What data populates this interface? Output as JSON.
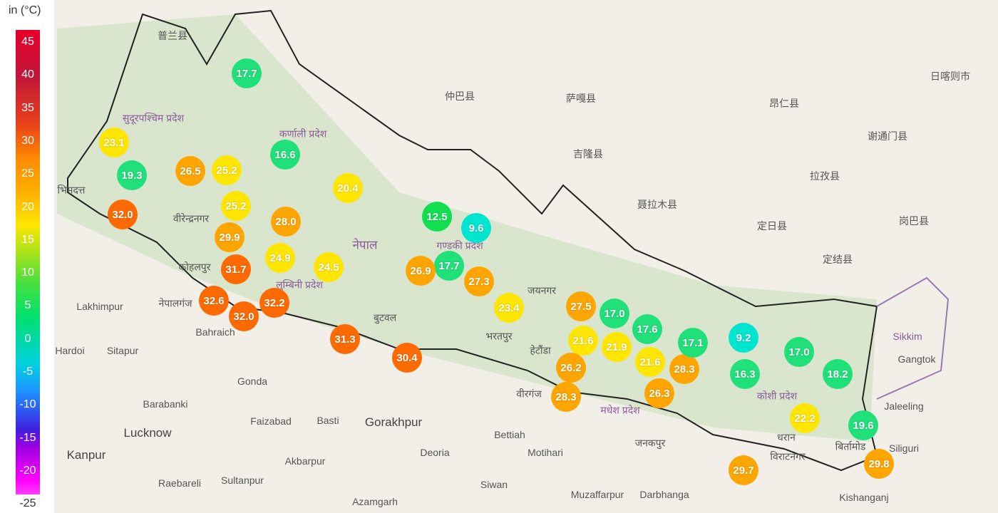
{
  "legend": {
    "unit": "in (°C)",
    "ticks": [
      "45",
      "40",
      "35",
      "30",
      "25",
      "20",
      "15",
      "10",
      "5",
      "0",
      "-5",
      "-10",
      "-15",
      "-20",
      "-25"
    ]
  },
  "stations": [
    {
      "value": "17.7"
    },
    {
      "value": "23.1"
    },
    {
      "value": "19.3"
    },
    {
      "value": "26.5"
    },
    {
      "value": "25.2"
    },
    {
      "value": "16.6"
    },
    {
      "value": "20.4"
    },
    {
      "value": "25.2"
    },
    {
      "value": "28.0"
    },
    {
      "value": "29.9"
    },
    {
      "value": "32.0"
    },
    {
      "value": "31.7"
    },
    {
      "value": "24.9"
    },
    {
      "value": "24.5"
    },
    {
      "value": "32.6"
    },
    {
      "value": "32.2"
    },
    {
      "value": "32.0"
    },
    {
      "value": "31.3"
    },
    {
      "value": "30.4"
    },
    {
      "value": "12.5"
    },
    {
      "value": "9.6"
    },
    {
      "value": "17.7"
    },
    {
      "value": "26.9"
    },
    {
      "value": "27.3"
    },
    {
      "value": "23.4"
    },
    {
      "value": "27.5"
    },
    {
      "value": "17.0"
    },
    {
      "value": "17.6"
    },
    {
      "value": "21.6"
    },
    {
      "value": "21.9"
    },
    {
      "value": "21.6"
    },
    {
      "value": "26.2"
    },
    {
      "value": "28.3"
    },
    {
      "value": "28.3"
    },
    {
      "value": "26.3"
    },
    {
      "value": "17.1"
    },
    {
      "value": "9.2"
    },
    {
      "value": "17.0"
    },
    {
      "value": "16.3"
    },
    {
      "value": "18.2"
    },
    {
      "value": "22.2"
    },
    {
      "value": "19.6"
    },
    {
      "value": "29.7"
    },
    {
      "value": "29.8"
    }
  ],
  "places": [
    "普兰县",
    "仲巴县",
    "萨嘎县",
    "吉隆县",
    "聂拉木县",
    "定日县",
    "定结县",
    "昂仁县",
    "拉孜县",
    "谢通门县",
    "岗巴县",
    "日喀则市",
    "सुदूरपश्चिम प्रदेश",
    "कर्णाली प्रदेश",
    "नेपाल",
    "गण्डकी प्रदेश",
    "लुम्बिनी प्रदेश",
    "मधेश प्रदेश",
    "कोशी प्रदेश",
    "Sikkim",
    "Gangtok",
    "Siliguri",
    "Lakhimpur",
    "Bahraich",
    "Hardoi",
    "Sitapur",
    "Gonda",
    "Barabanki",
    "Faizabad",
    "Basti",
    "Gorakhpur",
    "Lucknow",
    "Kanpur",
    "Raebareli",
    "Sultanpur",
    "Akbarpur",
    "Azamgarh",
    "Deoria",
    "Bettiah",
    "Motihari",
    "Siwan",
    "Muzaffarpur",
    "Darbhanga",
    "Kishanganj",
    "बुटवल",
    "हेटौंडा",
    "वीरगंज",
    "जनकपुर",
    "विराटनगर",
    "धरान",
    "बिर्तामोड",
    "भिमदत्त",
    "वीरेन्द्रनगर",
    "कोहलपुर",
    "नेपालगंज",
    "भरतपुर",
    "जयनगर",
    "Jaleeling"
  ]
}
